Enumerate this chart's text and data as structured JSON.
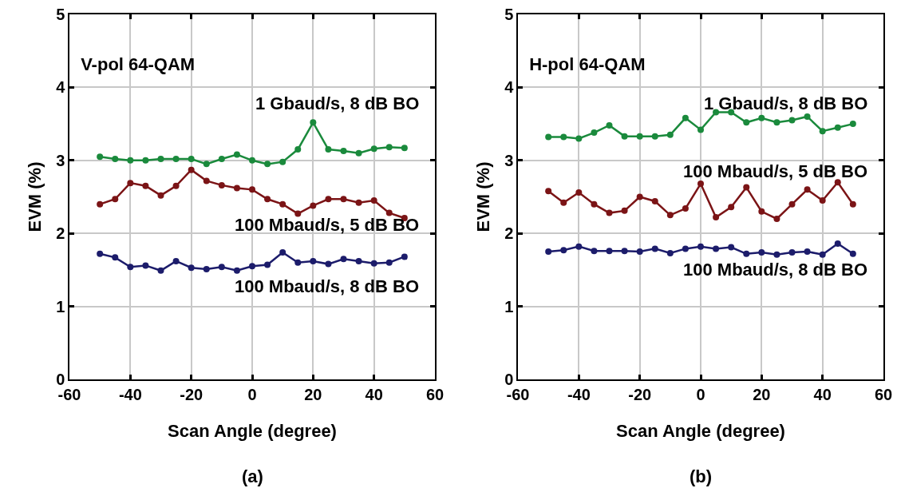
{
  "chart_data": [
    {
      "type": "line",
      "title": "V-pol 64-QAM",
      "subtitle": "(a)",
      "xlabel": "Scan Angle (degree)",
      "ylabel": "EVM (%)",
      "x": [
        -50,
        -45,
        -40,
        -35,
        -30,
        -25,
        -20,
        -15,
        -10,
        -5,
        0,
        5,
        10,
        15,
        20,
        25,
        30,
        35,
        40,
        45,
        50
      ],
      "series": [
        {
          "name": "1 Gbaud/s, 8 dB BO",
          "color": "#1a8a3c",
          "values": [
            3.05,
            3.02,
            3.0,
            3.0,
            3.02,
            3.02,
            3.02,
            2.95,
            3.02,
            3.08,
            3.0,
            2.95,
            2.98,
            3.15,
            3.52,
            3.15,
            3.13,
            3.1,
            3.16,
            3.18,
            3.17
          ]
        },
        {
          "name": "100 Mbaud/s, 5 dB BO",
          "color": "#7b1416",
          "values": [
            2.4,
            2.47,
            2.69,
            2.65,
            2.52,
            2.65,
            2.87,
            2.72,
            2.66,
            2.62,
            2.6,
            2.47,
            2.4,
            2.27,
            2.38,
            2.47,
            2.47,
            2.42,
            2.45,
            2.28,
            2.21
          ]
        },
        {
          "name": "100 Mbaud/s, 8 dB BO",
          "color": "#1c1c6b",
          "values": [
            1.72,
            1.67,
            1.54,
            1.56,
            1.49,
            1.62,
            1.53,
            1.51,
            1.54,
            1.49,
            1.55,
            1.57,
            1.74,
            1.6,
            1.62,
            1.58,
            1.65,
            1.62,
            1.59,
            1.6,
            1.68
          ]
        }
      ],
      "xlim": [
        -60,
        60
      ],
      "xticks": [
        -60,
        -40,
        -20,
        0,
        20,
        40,
        60
      ],
      "ylim": [
        0,
        5
      ],
      "yticks": [
        0,
        1,
        2,
        3,
        4,
        5
      ],
      "grid": true,
      "marker": "circle",
      "legend": false
    },
    {
      "type": "line",
      "title": "H-pol 64-QAM",
      "subtitle": "(b)",
      "xlabel": "Scan Angle (degree)",
      "ylabel": "EVM (%)",
      "x": [
        -50,
        -45,
        -40,
        -35,
        -30,
        -25,
        -20,
        -15,
        -10,
        -5,
        0,
        5,
        10,
        15,
        20,
        25,
        30,
        35,
        40,
        45,
        50
      ],
      "series": [
        {
          "name": "1 Gbaud/s, 8 dB BO",
          "color": "#1a8a3c",
          "values": [
            3.32,
            3.32,
            3.3,
            3.38,
            3.48,
            3.33,
            3.33,
            3.33,
            3.35,
            3.58,
            3.42,
            3.66,
            3.66,
            3.52,
            3.58,
            3.52,
            3.55,
            3.6,
            3.4,
            3.45,
            3.5
          ]
        },
        {
          "name": "100 Mbaud/s, 5 dB BO",
          "color": "#7b1416",
          "values": [
            2.58,
            2.42,
            2.56,
            2.4,
            2.28,
            2.31,
            2.5,
            2.44,
            2.25,
            2.34,
            2.68,
            2.22,
            2.36,
            2.63,
            2.3,
            2.2,
            2.4,
            2.6,
            2.45,
            2.7,
            2.4
          ]
        },
        {
          "name": "100 Mbaud/s, 8 dB BO",
          "color": "#1c1c6b",
          "values": [
            1.75,
            1.77,
            1.82,
            1.76,
            1.76,
            1.76,
            1.75,
            1.79,
            1.73,
            1.79,
            1.82,
            1.79,
            1.81,
            1.72,
            1.74,
            1.71,
            1.74,
            1.75,
            1.71,
            1.86,
            1.72
          ]
        }
      ],
      "xlim": [
        -60,
        60
      ],
      "xticks": [
        -60,
        -40,
        -20,
        0,
        20,
        40,
        60
      ],
      "ylim": [
        0,
        5
      ],
      "yticks": [
        0,
        1,
        2,
        3,
        4,
        5
      ],
      "grid": true,
      "marker": "circle",
      "legend": false
    }
  ]
}
